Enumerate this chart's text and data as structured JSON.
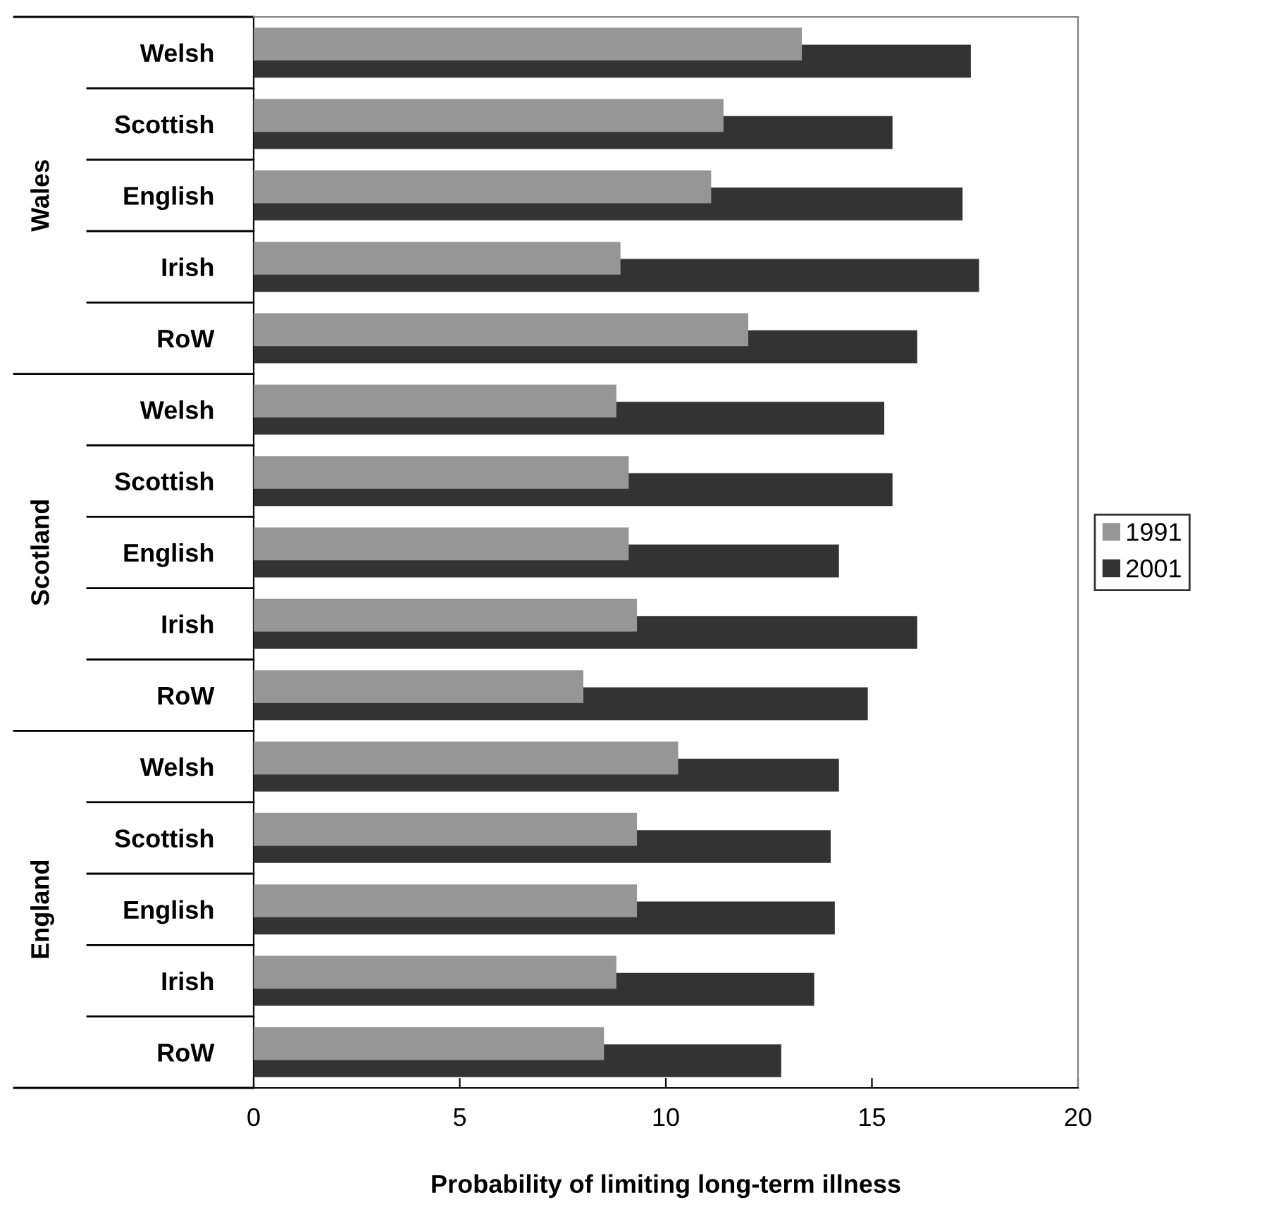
{
  "chart_data": {
    "type": "bar",
    "orientation": "horizontal",
    "xlabel": "Probability of limiting long-term illness",
    "categories": [
      "Welsh",
      "Scottish",
      "English",
      "Irish",
      "RoW",
      "Welsh",
      "Scottish",
      "English",
      "Irish",
      "RoW",
      "Welsh",
      "Scottish",
      "English",
      "Irish",
      "RoW"
    ],
    "annotations": [
      "Wales",
      "Scotland",
      "England"
    ],
    "series": [
      {
        "name": "1991",
        "color": "#969696",
        "values": [
          13.3,
          11.4,
          11.1,
          8.9,
          12.0,
          8.8,
          9.1,
          9.1,
          9.3,
          8.0,
          10.3,
          9.3,
          9.3,
          8.8,
          8.5
        ]
      },
      {
        "name": "2001",
        "color": "#333333",
        "values": [
          17.4,
          15.5,
          17.2,
          17.6,
          16.1,
          15.3,
          15.5,
          14.2,
          16.1,
          14.9,
          14.2,
          14.0,
          14.1,
          13.6,
          12.8
        ]
      }
    ],
    "xlim": [
      0,
      20
    ],
    "xticks": [
      0,
      5,
      10,
      15,
      20
    ],
    "grid": false,
    "legend": "right"
  }
}
